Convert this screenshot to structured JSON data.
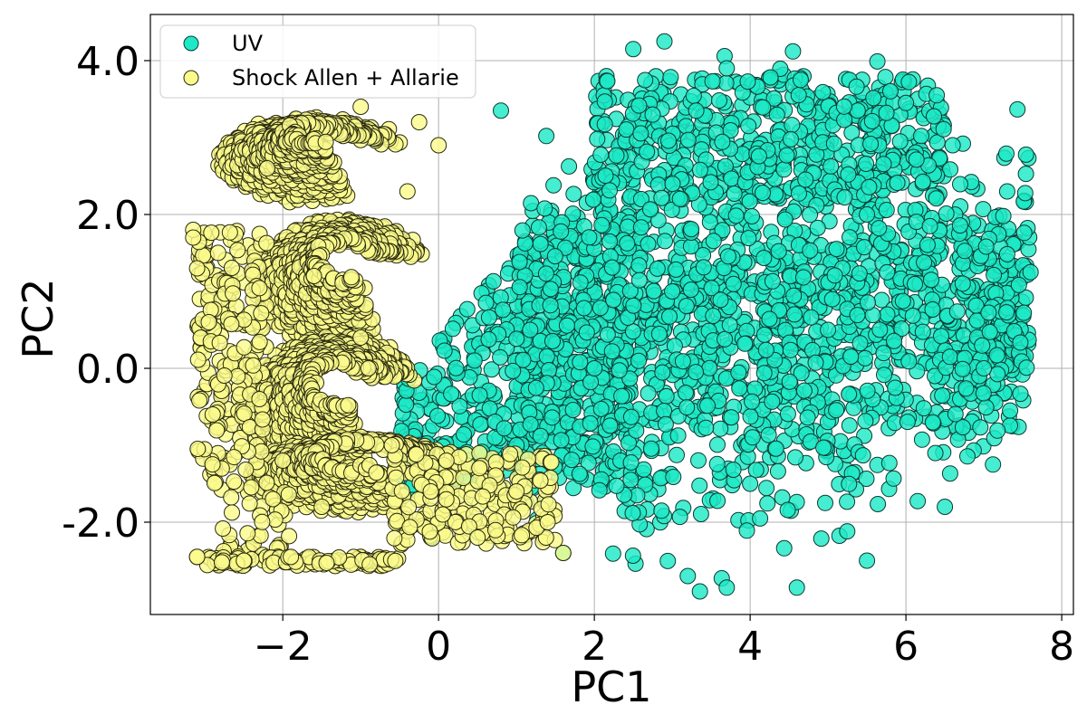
{
  "chart_data": {
    "type": "scatter",
    "xlabel": "PC1",
    "ylabel": "PC2",
    "xlim": [
      -3.7,
      8.15
    ],
    "ylim": [
      -3.2,
      4.6
    ],
    "xticks": [
      -2,
      0,
      2,
      4,
      6,
      8
    ],
    "xtick_labels": [
      "−2",
      "0",
      "2",
      "4",
      "6",
      "8"
    ],
    "yticks": [
      -2,
      0,
      2,
      4
    ],
    "ytick_labels": [
      "-2.0",
      "0.0",
      "2.0",
      "4.0"
    ],
    "grid": true,
    "legend_position": "top-left",
    "series": [
      {
        "name": "UV",
        "color": "#1de9c6",
        "edge_color": "#0b3b33",
        "x_range": [
          -0.9,
          7.6
        ],
        "y_range": [
          -2.9,
          4.25
        ],
        "sample_points": [
          [
            2.9,
            4.25
          ],
          [
            2.5,
            4.15
          ],
          [
            4.55,
            4.12
          ],
          [
            3.7,
            3.9
          ],
          [
            4.65,
            3.75
          ],
          [
            6.0,
            3.45
          ],
          [
            6.6,
            2.9
          ],
          [
            7.6,
            1.25
          ],
          [
            7.3,
            2.3
          ],
          [
            4.6,
            -2.85
          ],
          [
            3.7,
            -2.85
          ],
          [
            3.2,
            -2.7
          ],
          [
            0.8,
            3.35
          ],
          [
            -0.55,
            1.75
          ],
          [
            -0.1,
            -2.2
          ],
          [
            1.6,
            -2.4
          ],
          [
            5.5,
            -2.5
          ],
          [
            6.5,
            -1.8
          ],
          [
            7.0,
            0.0
          ],
          [
            5.0,
            0.5
          ],
          [
            3.0,
            1.0
          ],
          [
            2.0,
            0.0
          ],
          [
            1.0,
            -1.0
          ],
          [
            4.0,
            -1.5
          ],
          [
            5.5,
            2.0
          ]
        ]
      },
      {
        "name": "Shock Allen + Allarie",
        "color": "#fafa8c",
        "edge_color": "#2a2a10",
        "x_range": [
          -3.2,
          1.6
        ],
        "y_range": [
          -2.6,
          3.4
        ],
        "sample_points": [
          [
            -3.15,
            1.8
          ],
          [
            -3.15,
            1.7
          ],
          [
            -3.1,
            1.3
          ],
          [
            -2.95,
            0.6
          ],
          [
            -2.9,
            -0.6
          ],
          [
            -3.1,
            -2.45
          ],
          [
            -2.5,
            -2.5
          ],
          [
            -1.0,
            3.4
          ],
          [
            -0.25,
            3.2
          ],
          [
            0.0,
            2.9
          ],
          [
            -1.0,
            0.4
          ],
          [
            -0.6,
            -1.0
          ],
          [
            0.1,
            -1.2
          ],
          [
            -0.1,
            -1.6
          ],
          [
            1.6,
            -2.4
          ],
          [
            1.4,
            -2.0
          ],
          [
            1.0,
            -1.6
          ],
          [
            0.5,
            -2.2
          ],
          [
            -1.5,
            -1.8
          ],
          [
            -2.0,
            -1.2
          ],
          [
            -2.2,
            2.6
          ],
          [
            -1.6,
            1.2
          ],
          [
            -0.9,
            0.0
          ],
          [
            -2.3,
            -0.4
          ],
          [
            -0.4,
            2.3
          ]
        ]
      }
    ]
  }
}
